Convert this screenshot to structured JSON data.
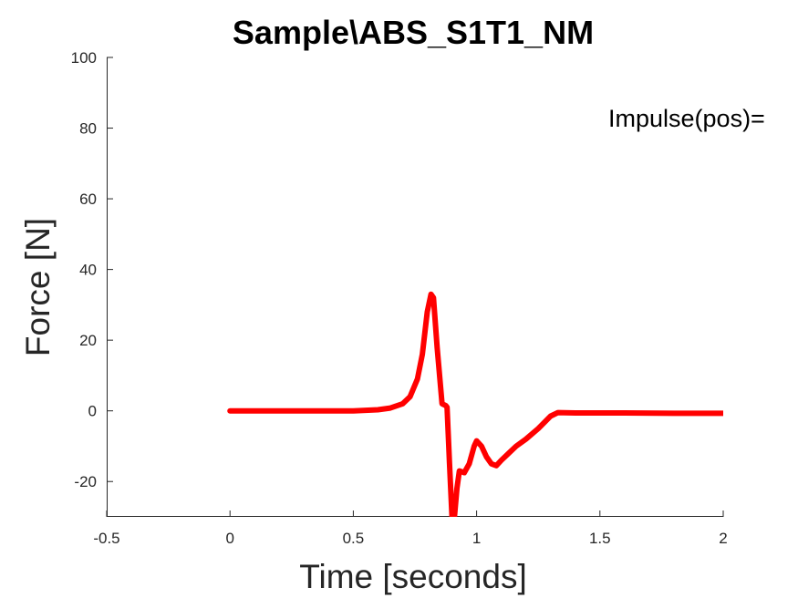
{
  "chart_data": {
    "type": "line",
    "title": "Sample\\ABS_S1T1_NM",
    "xlabel": "Time [seconds]",
    "ylabel": "Force [N]",
    "xlim": [
      -0.5,
      2
    ],
    "ylim": [
      -30,
      100
    ],
    "xticks": [
      -0.5,
      0,
      0.5,
      1,
      1.5,
      2
    ],
    "xtick_labels": [
      "-0.5",
      "0",
      "0.5",
      "1",
      "1.5",
      "2"
    ],
    "yticks": [
      -20,
      0,
      20,
      40,
      60,
      80,
      100
    ],
    "ytick_labels": [
      "-20",
      "0",
      "20",
      "40",
      "60",
      "80",
      "100"
    ],
    "grid": false,
    "annotation": "Impulse(pos)=",
    "series": [
      {
        "name": "Force",
        "color": "#ff0000",
        "x": [
          0,
          0.1,
          0.2,
          0.3,
          0.4,
          0.5,
          0.6,
          0.65,
          0.7,
          0.73,
          0.76,
          0.78,
          0.8,
          0.815,
          0.825,
          0.84,
          0.86,
          0.875,
          0.88,
          0.89,
          0.9,
          0.91,
          0.92,
          0.93,
          0.95,
          0.97,
          0.99,
          1.0,
          1.02,
          1.04,
          1.06,
          1.08,
          1.1,
          1.13,
          1.16,
          1.2,
          1.25,
          1.3,
          1.33,
          1.4,
          1.6,
          1.8,
          2.0
        ],
        "y": [
          0,
          0,
          0,
          0,
          0,
          0,
          0.3,
          0.8,
          2.0,
          4.0,
          9.0,
          16.0,
          28.0,
          33.0,
          32.0,
          18.0,
          2.0,
          1.5,
          1.0,
          -15.0,
          -30.0,
          -30.0,
          -22.0,
          -17.0,
          -17.5,
          -15.0,
          -10.0,
          -8.5,
          -10.0,
          -13.0,
          -15.0,
          -15.5,
          -14.0,
          -12.0,
          -10.0,
          -8.0,
          -5.0,
          -1.5,
          -0.5,
          -0.6,
          -0.6,
          -0.7,
          -0.7
        ]
      }
    ]
  }
}
